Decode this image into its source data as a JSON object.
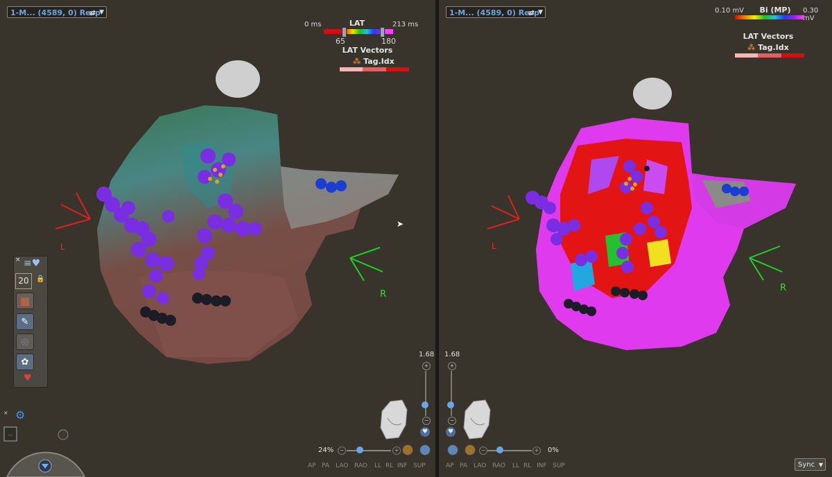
{
  "left": {
    "map_select": "1-M... (4589, 0) Resp",
    "lat_legend": {
      "title": "LAT",
      "min": "0 ms",
      "max": "213 ms",
      "low": "65",
      "high": "180"
    },
    "vectors_title": "LAT Vectors",
    "tag_label": "Tag.Idx",
    "orient_L": "L",
    "orient_R": "R",
    "zoom_value": "1.68",
    "transparency": "24%",
    "views": [
      "AP",
      "PA",
      "LAO",
      "RAO",
      "LL",
      "RL",
      "INF",
      "SUP"
    ]
  },
  "right": {
    "map_select": "1-M... (4589, 0) Resp",
    "bi_legend": {
      "title": "Bi (MP)",
      "min": "0.10 mV",
      "max": "0.30 mV"
    },
    "vectors_title": "LAT Vectors",
    "tag_label": "Tag.Idx",
    "orient_L": "L",
    "orient_R": "R",
    "zoom_value": "1.68",
    "transparency": "0%",
    "views": [
      "AP",
      "PA",
      "LAO",
      "RAO",
      "LL",
      "RL",
      "INF",
      "SUP"
    ],
    "sync_label": "Sync"
  },
  "toolbar": {
    "point_size": "20"
  },
  "colors": {
    "lat_gradient": [
      "#e01010",
      "#f0a000",
      "#f0f000",
      "#20c020",
      "#20c0e0",
      "#2040f0",
      "#a020f0",
      "#ff40ff"
    ],
    "tag_bar": [
      "#f5b5b5",
      "#e46060",
      "#d51010"
    ],
    "point_color": "#7b2be0"
  }
}
